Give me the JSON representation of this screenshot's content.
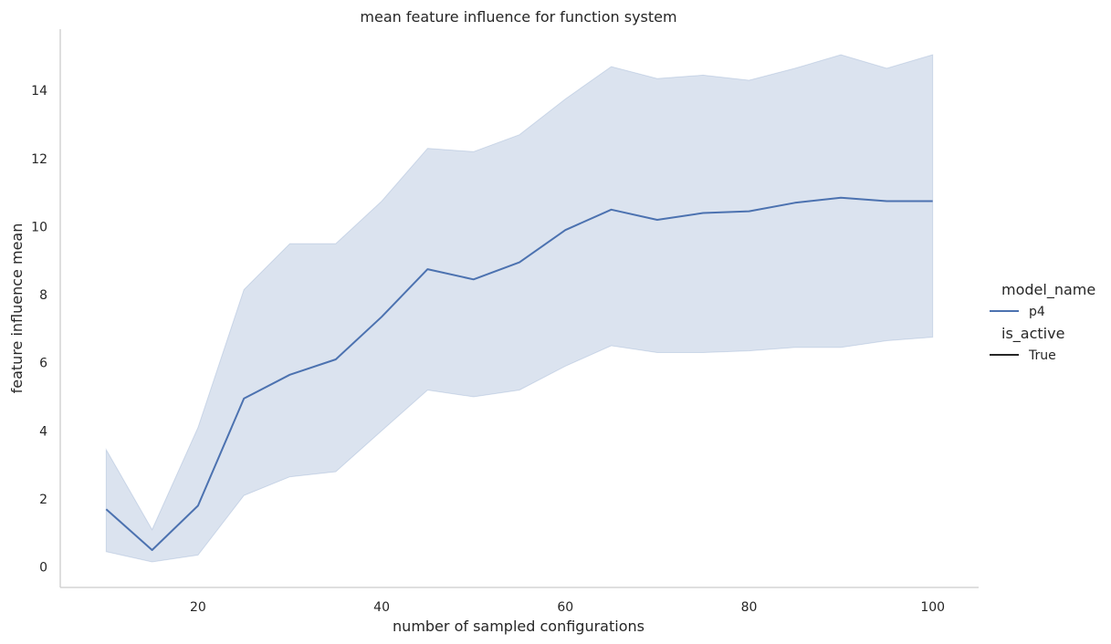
{
  "chart_data": {
    "type": "line",
    "title": "mean feature influence for function system",
    "xlabel": "number of sampled configurations",
    "ylabel": "feature influence mean",
    "xlim": [
      5,
      105
    ],
    "ylim": [
      -0.6,
      15.8
    ],
    "xticks": [
      20,
      40,
      60,
      80,
      100
    ],
    "yticks": [
      0,
      2,
      4,
      6,
      8,
      10,
      12,
      14
    ],
    "grid": false,
    "legend_position": "right",
    "legend": {
      "hue_title": "model_name",
      "style_title": "is_active",
      "entries": [
        {
          "group": "model_name",
          "label": "p4",
          "color": "#4c72b0"
        },
        {
          "group": "is_active",
          "label": "True",
          "color": "#262626"
        }
      ]
    },
    "series": [
      {
        "name": "p4",
        "color": "#4c72b0",
        "band_color": "#4c72b0",
        "x": [
          10,
          15,
          20,
          25,
          30,
          35,
          40,
          45,
          50,
          55,
          60,
          65,
          70,
          75,
          80,
          85,
          90,
          95,
          100
        ],
        "values": [
          1.7,
          0.5,
          1.8,
          4.95,
          5.65,
          6.1,
          7.35,
          8.75,
          8.45,
          8.95,
          9.9,
          10.5,
          10.2,
          10.4,
          10.45,
          10.7,
          10.85,
          10.75,
          10.75
        ],
        "ci_lower": [
          0.45,
          0.15,
          0.35,
          2.1,
          2.65,
          2.8,
          4.0,
          5.2,
          5.0,
          5.2,
          5.9,
          6.5,
          6.3,
          6.3,
          6.35,
          6.45,
          6.45,
          6.65,
          6.75
        ],
        "ci_upper": [
          3.45,
          1.1,
          4.1,
          8.15,
          9.5,
          9.5,
          10.75,
          12.3,
          12.2,
          12.7,
          13.75,
          14.7,
          14.35,
          14.45,
          14.3,
          14.65,
          15.05,
          14.65,
          15.05
        ]
      }
    ]
  }
}
